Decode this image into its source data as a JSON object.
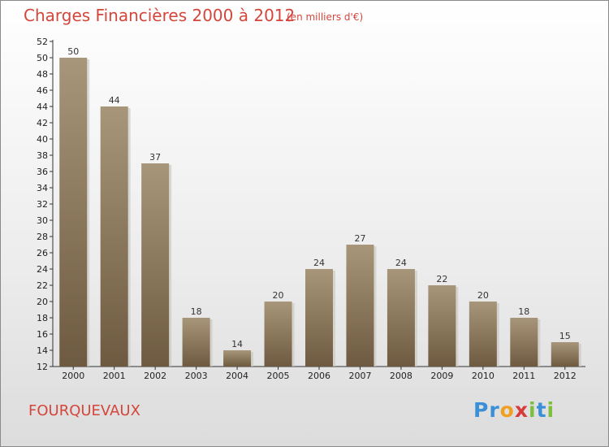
{
  "header": {
    "title": "Charges Financières 2000 à 2012",
    "subtitle": "(en milliers d'€)"
  },
  "footer": {
    "commune": "FOURQUEVAUX",
    "logo_letters": [
      {
        "char": "P",
        "color": "#3a8fd6"
      },
      {
        "char": "r",
        "color": "#3a8fd6"
      },
      {
        "char": "o",
        "color": "#f0a020"
      },
      {
        "char": "x",
        "color": "#d93a3a"
      },
      {
        "char": "i",
        "color": "#7cbf3a"
      },
      {
        "char": "t",
        "color": "#3a8fd6"
      },
      {
        "char": "i",
        "color": "#7cbf3a"
      }
    ]
  },
  "chart_data": {
    "type": "bar",
    "categories": [
      "2000",
      "2001",
      "2002",
      "2003",
      "2004",
      "2005",
      "2006",
      "2007",
      "2008",
      "2009",
      "2010",
      "2011",
      "2012"
    ],
    "values": [
      50,
      44,
      37,
      18,
      14,
      20,
      24,
      27,
      24,
      22,
      20,
      18,
      15
    ],
    "data_labels": [
      "50",
      "44",
      "37",
      "18",
      "14",
      "20",
      "24",
      "27",
      "24",
      "22",
      "20",
      "18",
      "15"
    ],
    "yticks": [
      "12",
      "14",
      "16",
      "18",
      "20",
      "22",
      "24",
      "26",
      "28",
      "30",
      "32",
      "34",
      "36",
      "38",
      "40",
      "42",
      "44",
      "46",
      "48",
      "50",
      "52"
    ],
    "ylim": [
      12,
      52
    ],
    "title": "Charges Financières 2000 à 2012",
    "xlabel": "",
    "ylabel": "",
    "grid": false,
    "bar_color": "#7d6a4f"
  }
}
